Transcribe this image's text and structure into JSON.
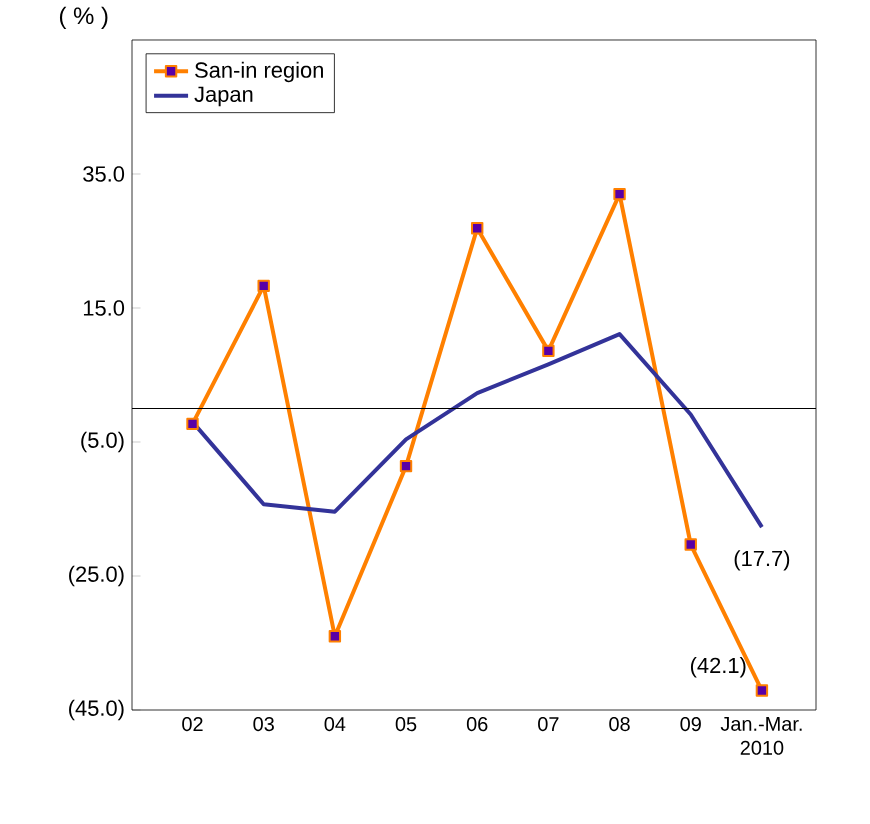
{
  "chart_data": {
    "type": "line",
    "ylabel": "( % )",
    "categories": [
      "02",
      "03",
      "04",
      "05",
      "06",
      "07",
      "08",
      "09",
      "Jan.-Mar. 2010"
    ],
    "series": [
      {
        "name": "San-in region",
        "color": "#ff8000",
        "marker": "square",
        "values": [
          -2.3,
          18.3,
          -34,
          -8.6,
          26.9,
          8.6,
          32,
          -20.3,
          -42.1
        ]
      },
      {
        "name": "Japan",
        "color": "#333399",
        "values": [
          -2,
          -14.3,
          -15.4,
          -4.6,
          2.3,
          6.6,
          11.1,
          -0.9,
          -17.7
        ]
      }
    ],
    "ylim": [
      -45,
      55
    ],
    "yticks": [
      {
        "value": 35,
        "label": "35.0"
      },
      {
        "value": 15,
        "label": "15.0"
      },
      {
        "value": -5,
        "label": "(5.0)"
      },
      {
        "value": -25,
        "label": "(25.0)"
      },
      {
        "value": -45,
        "label": "(45.0)"
      }
    ],
    "ref_lines": [
      {
        "axis": "y",
        "value": 0,
        "color": "#000000"
      }
    ],
    "annotations": [
      {
        "text": "(17.7)",
        "x": "Jan.-Mar. 2010",
        "y": -17.7
      },
      {
        "text": "(42.1)",
        "x": "Jan.-Mar. 2010",
        "y": -42.1
      }
    ],
    "legend": "top left",
    "grid": false,
    "line_style": "solid"
  }
}
